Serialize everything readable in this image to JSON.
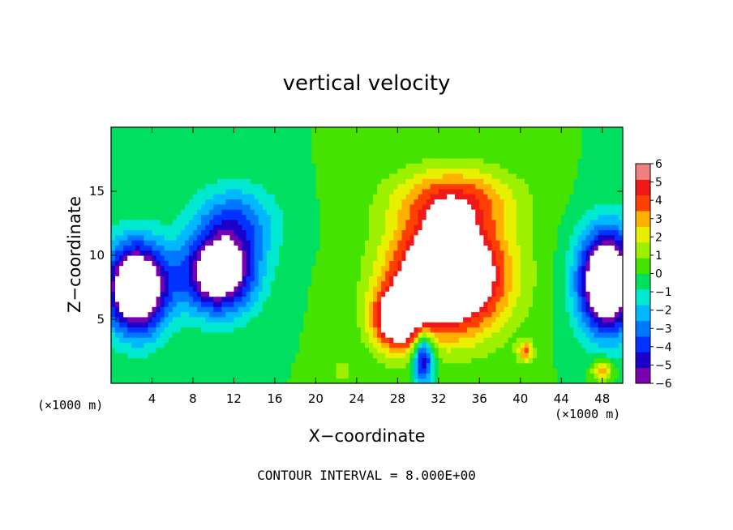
{
  "chart_data": {
    "type": "heatmap",
    "title": "vertical velocity",
    "xlabel": "X−coordinate",
    "ylabel": "Z−coordinate",
    "x_unit_label": "(×1000 m)",
    "footer": "CONTOUR INTERVAL = 8.000E+00",
    "xlim": [
      0,
      50
    ],
    "ylim": [
      0,
      20
    ],
    "x_ticks": [
      4,
      8,
      12,
      16,
      20,
      24,
      28,
      32,
      36,
      40,
      44,
      48
    ],
    "y_ticks": [
      5,
      10,
      15
    ],
    "colorbar": {
      "levels": [
        6,
        5,
        4,
        3,
        2,
        1,
        0,
        -1,
        -2,
        -3,
        -4,
        -5,
        -6
      ],
      "labels": [
        "6",
        "5",
        "4",
        "3",
        "2",
        "1",
        "0",
        "−1",
        "−2",
        "−3",
        "−4",
        "−5",
        "−6"
      ]
    },
    "features": [
      {
        "sign": "down",
        "x": 10.5,
        "z": 8.5,
        "sx": 3.5,
        "sz": 3.0,
        "amp": -9
      },
      {
        "sign": "down",
        "x": 2.5,
        "z": 7.5,
        "sx": 3.0,
        "sz": 3.5,
        "amp": -11
      },
      {
        "sign": "down",
        "x": 48.5,
        "z": 8.0,
        "sx": 2.8,
        "sz": 4.0,
        "amp": -11
      },
      {
        "sign": "down",
        "x": 12.0,
        "z": 12.5,
        "sx": 4.0,
        "sz": 3.0,
        "amp": -4
      },
      {
        "sign": "down",
        "x": 30.5,
        "z": 2.0,
        "sx": 1.0,
        "sz": 2.0,
        "amp": -7
      },
      {
        "sign": "up",
        "x": 33.0,
        "z": 8.5,
        "sx": 5.5,
        "sz": 4.5,
        "amp": 11
      },
      {
        "sign": "up",
        "x": 28.0,
        "z": 5.0,
        "sx": 2.5,
        "sz": 2.5,
        "amp": 7
      },
      {
        "sign": "up",
        "x": 33.5,
        "z": 14.5,
        "sx": 6.0,
        "sz": 2.5,
        "amp": 4
      },
      {
        "sign": "up",
        "x": 40.5,
        "z": 2.5,
        "sx": 0.8,
        "sz": 0.8,
        "amp": 4
      },
      {
        "sign": "up",
        "x": 48.0,
        "z": 1.0,
        "sx": 1.0,
        "sz": 0.8,
        "amp": 4
      },
      {
        "sign": "up",
        "x": 22.5,
        "z": 1.0,
        "sx": 0.8,
        "sz": 0.8,
        "amp": 2
      }
    ]
  }
}
